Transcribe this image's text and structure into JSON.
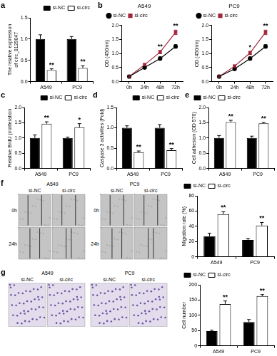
{
  "chart_data": [
    {
      "panel": "a",
      "type": "bar",
      "y_label": [
        "The relative expression",
        "of circ_0129047"
      ],
      "categories": [
        "A549",
        "PC9"
      ],
      "series": [
        {
          "name": "si-NC",
          "color": "#000000",
          "values": [
            1.0,
            1.0
          ],
          "error": [
            0.1,
            0.06
          ]
        },
        {
          "name": "si-circ",
          "color": "#ffffff",
          "values": [
            0.27,
            0.32
          ],
          "error": [
            0.03,
            0.05
          ],
          "annotations": [
            "**",
            "**"
          ]
        }
      ],
      "ylim": [
        0,
        1.5
      ],
      "yticks": [
        {
          "value": 0,
          "label": "0.0"
        },
        0.5,
        {
          "value": 1,
          "label": "1.0"
        },
        1.5
      ],
      "legend": "top-right",
      "grid": false
    },
    {
      "panel": "b",
      "type": "line",
      "title": "A549",
      "y_label": "OD (450nm)",
      "categories": [
        "0h",
        "24h",
        "48h",
        "72h"
      ],
      "series": [
        {
          "name": "si-NC",
          "color": "#000000",
          "marker": "circle",
          "values": [
            0.18,
            0.5,
            0.82,
            1.25
          ],
          "error": [
            0.02,
            0.04,
            0.05,
            0.06
          ]
        },
        {
          "name": "si-circ",
          "color": "#a0283c",
          "marker": "square",
          "values": [
            0.18,
            0.6,
            1.05,
            1.75
          ],
          "error": [
            0.02,
            0.04,
            0.06,
            0.08
          ],
          "annotations": [
            null,
            null,
            "**",
            "**"
          ]
        }
      ],
      "ylim": [
        0,
        2
      ],
      "yticks": [
        {
          "value": 0,
          "label": "0.0"
        },
        0.5,
        {
          "value": 1,
          "label": "1.0"
        },
        1.5,
        {
          "value": 2,
          "label": "2.0"
        }
      ],
      "legend": "top-left",
      "grid": false
    },
    {
      "type": "line",
      "title": "PC9",
      "y_label": "OD (450nm)",
      "categories": [
        "0h",
        "24h",
        "48h",
        "72h"
      ],
      "series": [
        {
          "name": "si-NC",
          "color": "#000000",
          "marker": "circle",
          "values": [
            0.18,
            0.45,
            0.82,
            1.25
          ],
          "error": [
            0.02,
            0.03,
            0.05,
            0.06
          ]
        },
        {
          "name": "si-circ",
          "color": "#a0283c",
          "marker": "square",
          "values": [
            0.18,
            0.55,
            1.02,
            1.75
          ],
          "error": [
            0.02,
            0.04,
            0.06,
            0.08
          ],
          "annotations": [
            null,
            null,
            "*",
            "**"
          ]
        }
      ],
      "ylim": [
        0,
        2
      ],
      "yticks": [
        {
          "value": 0,
          "label": "0.0"
        },
        0.5,
        {
          "value": 1,
          "label": "1.0"
        },
        1.5,
        {
          "value": 2,
          "label": "2.0"
        }
      ],
      "legend": "top-left",
      "grid": false
    },
    {
      "panel": "c",
      "type": "bar",
      "y_label": "Relative BrdU proliferation",
      "categories": [
        "A549",
        "PC9"
      ],
      "series": [
        {
          "name": "si-NC",
          "color": "#000000",
          "values": [
            1.0,
            1.0
          ],
          "error": [
            0.1,
            0.03
          ]
        },
        {
          "name": "si-circ",
          "color": "#ffffff",
          "values": [
            1.47,
            1.35
          ],
          "error": [
            0.06,
            0.12
          ],
          "annotations": [
            "**",
            "*"
          ]
        }
      ],
      "ylim": [
        0,
        2
      ],
      "yticks": [
        {
          "value": 0,
          "label": "0.0"
        },
        0.5,
        {
          "value": 1,
          "label": "1.0"
        },
        1.5,
        {
          "value": 2,
          "label": "2.0"
        }
      ],
      "legend": "top-right",
      "grid": false
    },
    {
      "panel": "d",
      "type": "bar",
      "y_label": "Caspase 3 activities (Fold)",
      "categories": [
        "A549",
        "PC9"
      ],
      "series": [
        {
          "name": "si-NC",
          "color": "#000000",
          "values": [
            1.0,
            1.0
          ],
          "error": [
            0.05,
            0.08
          ]
        },
        {
          "name": "si-circ",
          "color": "#ffffff",
          "values": [
            0.4,
            0.45
          ],
          "error": [
            0.03,
            0.04
          ],
          "annotations": [
            "**",
            "**"
          ]
        }
      ],
      "ylim": [
        0,
        1.5
      ],
      "yticks": [
        {
          "value": 0,
          "label": "0.0"
        },
        0.5,
        {
          "value": 1,
          "label": "1.0"
        },
        1.5
      ],
      "legend": "top-right",
      "grid": false
    },
    {
      "panel": "e",
      "type": "bar",
      "y_label": "Cell adhesion (OD 570)",
      "categories": [
        "A549",
        "PC9"
      ],
      "series": [
        {
          "name": "si-NC",
          "color": "#000000",
          "values": [
            1.0,
            1.0
          ],
          "error": [
            0.08,
            0.06
          ]
        },
        {
          "name": "si-circ",
          "color": "#ffffff",
          "values": [
            1.52,
            1.48
          ],
          "error": [
            0.06,
            0.03
          ],
          "annotations": [
            "**",
            "**"
          ]
        }
      ],
      "ylim": [
        0,
        2
      ],
      "yticks": [
        {
          "value": 0,
          "label": "0.0"
        },
        0.5,
        {
          "value": 1,
          "label": "1.0"
        },
        1.5,
        {
          "value": 2,
          "label": "2.0"
        }
      ],
      "legend": "top-left",
      "grid": false
    },
    {
      "type": "bar",
      "y_label": "Migration rate (%)",
      "categories": [
        "A549",
        "PC9"
      ],
      "series": [
        {
          "name": "si-NC",
          "color": "#000000",
          "values": [
            27,
            22
          ],
          "error": [
            4,
            2
          ]
        },
        {
          "name": "si-circ",
          "color": "#ffffff",
          "values": [
            56,
            41
          ],
          "error": [
            3,
            4
          ],
          "annotations": [
            "**",
            "**"
          ]
        }
      ],
      "ylim": [
        0,
        80
      ],
      "yticks": [
        0,
        20,
        40,
        60,
        80
      ],
      "legend": "top-left",
      "grid": false
    },
    {
      "type": "bar",
      "y_label": "Cell number",
      "categories": [
        "A549",
        "PC9"
      ],
      "series": [
        {
          "name": "si-NC",
          "color": "#000000",
          "values": [
            48,
            78
          ],
          "error": [
            3,
            8
          ]
        },
        {
          "name": "si-circ",
          "color": "#ffffff",
          "values": [
            137,
            163
          ],
          "error": [
            10,
            5
          ],
          "annotations": [
            "**",
            "**"
          ]
        }
      ],
      "ylim": [
        0,
        200
      ],
      "yticks": [
        0,
        50,
        100,
        150,
        200
      ],
      "legend": "top-left",
      "grid": false
    }
  ],
  "images": [
    {
      "panel": "f",
      "type": "scratch",
      "groups": [
        {
          "title": "A549",
          "columns": [
            "si-NC",
            "si-circ"
          ],
          "rows": [
            "0h",
            "24h"
          ]
        },
        {
          "title": "PC9",
          "columns": [
            "si-NC",
            "si-circ"
          ],
          "rows": [
            "0h",
            "24h"
          ]
        }
      ]
    },
    {
      "panel": "g",
      "type": "transwell",
      "groups": [
        {
          "title": "A549",
          "columns": [
            "si-NC",
            "si-circ"
          ]
        },
        {
          "title": "PC9",
          "columns": [
            "si-NC",
            "si-circ"
          ]
        }
      ]
    }
  ]
}
